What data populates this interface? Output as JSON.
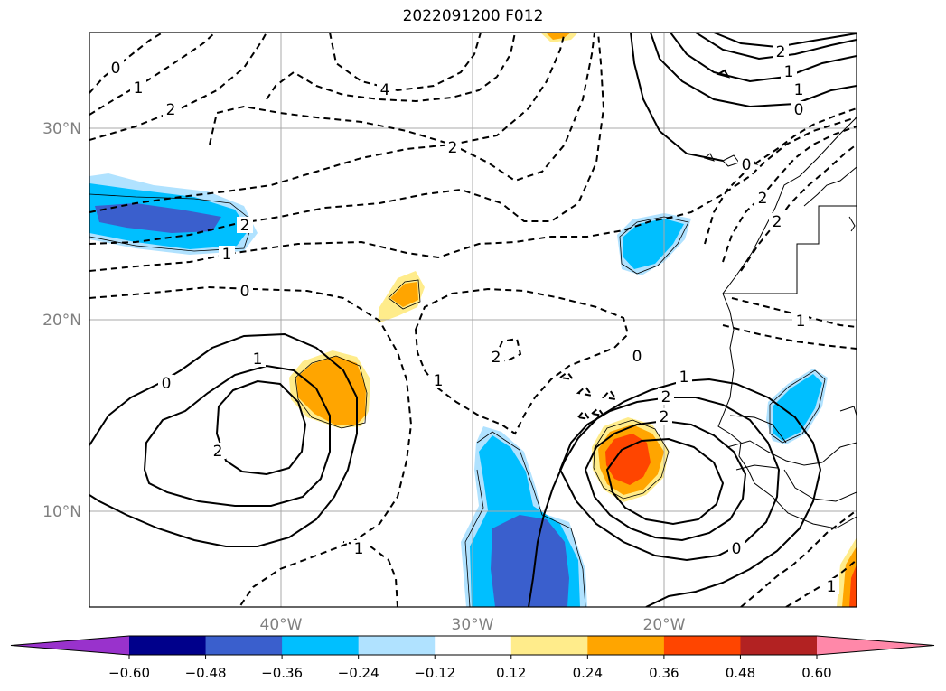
{
  "title": "2022091200 F012",
  "map": {
    "lat_labels": [
      "30°N",
      "20°N",
      "10°N"
    ],
    "lon_labels": [
      "40°W",
      "30°W",
      "20°W"
    ],
    "contour_labels": [
      "0",
      "1",
      "2",
      "4",
      "2",
      "2",
      "1",
      "0",
      "2",
      "1",
      "0",
      "1",
      "2",
      "0",
      "1",
      "2",
      "2",
      "1",
      "2",
      "1",
      "0",
      "0",
      "1",
      "2",
      "0",
      "1",
      "2",
      "1"
    ]
  },
  "colorbar": {
    "colors": [
      "#9932cc",
      "#00008b",
      "#3a5fcd",
      "#00bfff",
      "#b0e2ff",
      "#ffffff",
      "#ffec8b",
      "#ffa500",
      "#ff4500",
      "#b22222",
      "#ff88a9"
    ],
    "ticks": [
      "−0.60",
      "−0.48",
      "−0.36",
      "−0.24",
      "−0.12",
      "0.12",
      "0.24",
      "0.36",
      "0.48",
      "0.60"
    ]
  }
}
